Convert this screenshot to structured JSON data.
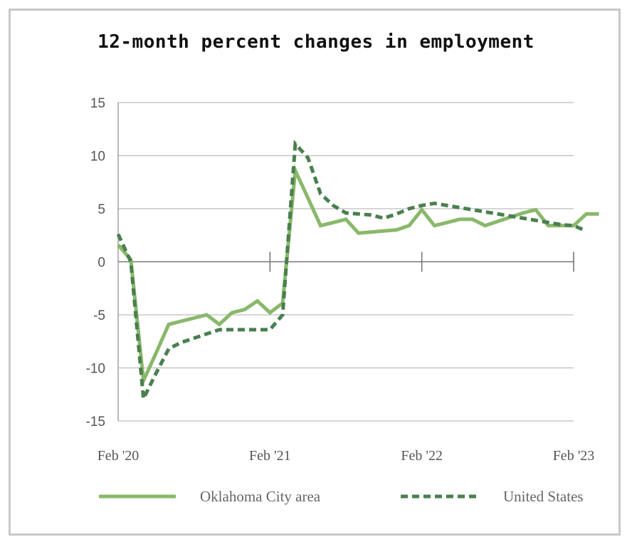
{
  "chart_data": {
    "type": "line",
    "title": "12-month percent changes in employment",
    "xlabel": "",
    "ylabel": "",
    "ylim": [
      -15,
      15
    ],
    "yticks": [
      "15",
      "10",
      "5",
      "0",
      "-5",
      "-10",
      "-15"
    ],
    "xticks": [
      "Feb '20",
      "Feb '21",
      "Feb '22",
      "Feb '23"
    ],
    "grid": true,
    "legend_position": "bottom",
    "series": [
      {
        "name": "Oklahoma City area",
        "style": "solid",
        "color": "#8ab86a",
        "points": [
          [
            "2020-02",
            1.6
          ],
          [
            "2020-03",
            0.2
          ],
          [
            "2020-04",
            -11.2
          ],
          [
            "2020-05",
            -8.6
          ],
          [
            "2020-06",
            -5.9
          ],
          [
            "2020-07",
            -5.6
          ],
          [
            "2020-08",
            -5.3
          ],
          [
            "2020-09",
            -5.0
          ],
          [
            "2020-10",
            -5.9
          ],
          [
            "2020-11",
            -4.8
          ],
          [
            "2020-12",
            -4.5
          ],
          [
            "2021-01",
            -3.7
          ],
          [
            "2021-02",
            -4.8
          ],
          [
            "2021-03",
            -3.9
          ],
          [
            "2021-04",
            8.6
          ],
          [
            "2021-05",
            6.0
          ],
          [
            "2021-06",
            3.4
          ],
          [
            "2021-07",
            3.7
          ],
          [
            "2021-08",
            4.0
          ],
          [
            "2021-09",
            2.7
          ],
          [
            "2021-10",
            2.8
          ],
          [
            "2021-11",
            2.9
          ],
          [
            "2021-12",
            3.0
          ],
          [
            "2022-01",
            3.4
          ],
          [
            "2022-02",
            4.9
          ],
          [
            "2022-03",
            3.4
          ],
          [
            "2022-04",
            3.7
          ],
          [
            "2022-05",
            4.0
          ],
          [
            "2022-06",
            4.0
          ],
          [
            "2022-07",
            3.4
          ],
          [
            "2022-08",
            3.8
          ],
          [
            "2022-09",
            4.2
          ],
          [
            "2022-10",
            4.6
          ],
          [
            "2022-11",
            4.9
          ],
          [
            "2022-12",
            3.4
          ],
          [
            "2023-01",
            3.4
          ],
          [
            "2023-02",
            3.4
          ],
          [
            "2023-03",
            4.5
          ],
          [
            "2023-04",
            4.5
          ]
        ]
      },
      {
        "name": "United States",
        "style": "dashed",
        "color": "#4a7f4f",
        "points": [
          [
            "2020-02",
            2.6
          ],
          [
            "2020-03",
            0.0
          ],
          [
            "2020-04",
            -12.9
          ],
          [
            "2020-05",
            -10.5
          ],
          [
            "2020-06",
            -8.2
          ],
          [
            "2020-07",
            -7.6
          ],
          [
            "2020-08",
            -7.2
          ],
          [
            "2020-09",
            -6.8
          ],
          [
            "2020-10",
            -6.4
          ],
          [
            "2020-11",
            -6.4
          ],
          [
            "2020-12",
            -6.4
          ],
          [
            "2021-01",
            -6.4
          ],
          [
            "2021-02",
            -6.4
          ],
          [
            "2021-03",
            -5.0
          ],
          [
            "2021-04",
            11.1
          ],
          [
            "2021-05",
            9.8
          ],
          [
            "2021-06",
            6.4
          ],
          [
            "2021-07",
            5.3
          ],
          [
            "2021-08",
            4.6
          ],
          [
            "2021-09",
            4.5
          ],
          [
            "2021-10",
            4.4
          ],
          [
            "2021-11",
            4.1
          ],
          [
            "2021-12",
            4.5
          ],
          [
            "2022-01",
            5.0
          ],
          [
            "2022-02",
            5.3
          ],
          [
            "2022-03",
            5.5
          ],
          [
            "2022-04",
            5.3
          ],
          [
            "2022-05",
            5.1
          ],
          [
            "2022-06",
            4.9
          ],
          [
            "2022-07",
            4.7
          ],
          [
            "2022-08",
            4.5
          ],
          [
            "2022-09",
            4.3
          ],
          [
            "2022-10",
            4.1
          ],
          [
            "2022-11",
            3.9
          ],
          [
            "2022-12",
            3.7
          ],
          [
            "2023-01",
            3.5
          ],
          [
            "2023-02",
            3.4
          ],
          [
            "2023-03",
            2.9
          ]
        ]
      }
    ]
  }
}
